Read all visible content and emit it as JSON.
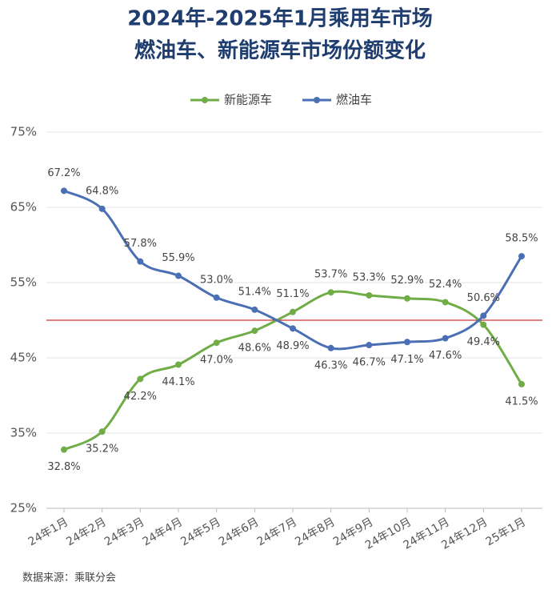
{
  "chart_data": {
    "type": "line",
    "title": "2024年-2025年1月乘用车市场",
    "subtitle": "燃油车、新能源车市场份额变化",
    "categories": [
      "24年1月",
      "24年2月",
      "24年3月",
      "24年4月",
      "24年5月",
      "24年6月",
      "24年7月",
      "24年8月",
      "24年9月",
      "24年10月",
      "24年11月",
      "24年12月",
      "25年1月"
    ],
    "series": [
      {
        "name": "新能源车",
        "color": "#70ad47",
        "values": [
          32.8,
          35.2,
          42.2,
          44.1,
          47.0,
          48.6,
          51.1,
          53.7,
          53.3,
          52.9,
          52.4,
          49.4,
          41.5
        ],
        "value_labels": [
          "32.8%",
          "35.2%",
          "42.2%",
          "44.1%",
          "47.0%",
          "48.6%",
          "51.1%",
          "53.7%",
          "53.3%",
          "52.9%",
          "52.4%",
          "49.4%",
          "41.5%"
        ]
      },
      {
        "name": "燃油车",
        "color": "#4a6fb5",
        "values": [
          67.2,
          64.8,
          57.8,
          55.9,
          53.0,
          51.4,
          48.9,
          46.3,
          46.7,
          47.1,
          47.6,
          50.6,
          58.5
        ],
        "value_labels": [
          "67.2%",
          "64.8%",
          "57.8%",
          "55.9%",
          "53.0%",
          "51.4%",
          "48.9%",
          "46.3%",
          "46.7%",
          "47.1%",
          "47.6%",
          "50.6%",
          "58.5%"
        ]
      }
    ],
    "ylim": [
      25,
      75
    ],
    "yticks": [
      {
        "value": 25,
        "label": "25%"
      },
      {
        "value": 35,
        "label": "35%"
      },
      {
        "value": 45,
        "label": "45%"
      },
      {
        "value": 55,
        "label": "55%"
      },
      {
        "value": 65,
        "label": "65%"
      },
      {
        "value": 75,
        "label": "75%"
      }
    ],
    "grid": true,
    "reference_line": {
      "value": 50,
      "color": "#c00000"
    },
    "legend": "top",
    "source": "数据来源：乘联分会"
  }
}
